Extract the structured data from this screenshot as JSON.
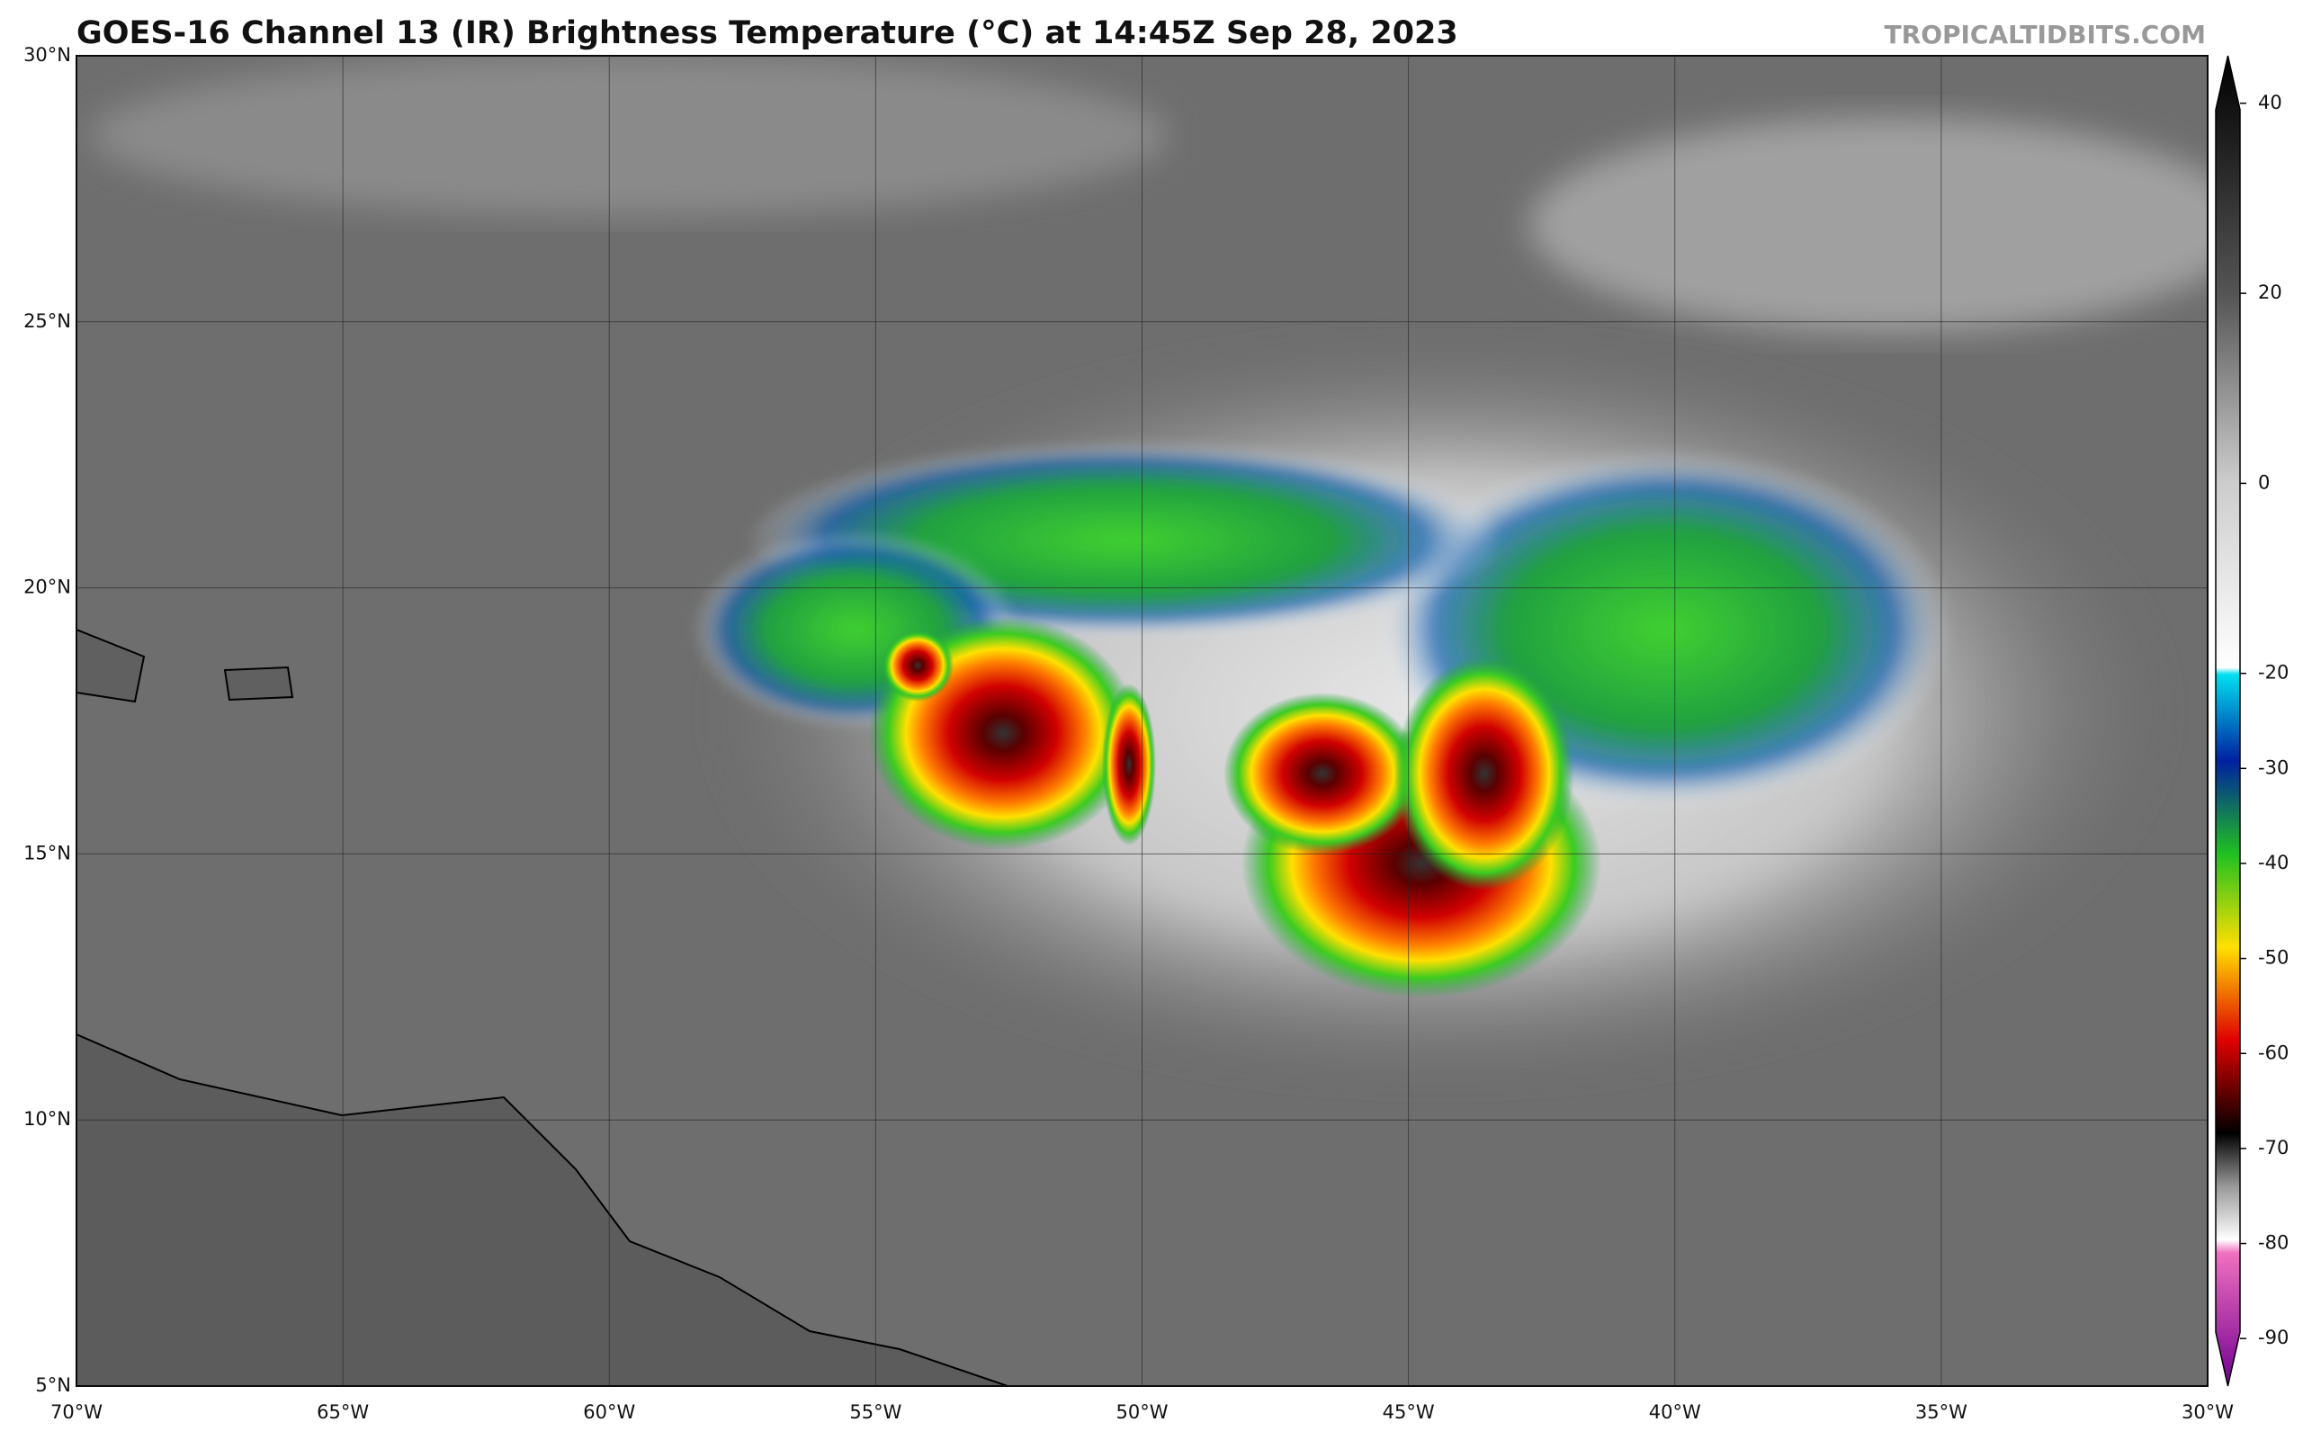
{
  "header": {
    "title": "GOES-16 Channel 13 (IR) Brightness Temperature (°C) at 14:45Z Sep 28, 2023",
    "watermark": "TROPICALTIDBITS.COM"
  },
  "map": {
    "xlim": [
      -70,
      -30
    ],
    "ylim": [
      5,
      30
    ],
    "xticks": [
      {
        "value": -70,
        "label": "70°W"
      },
      {
        "value": -65,
        "label": "65°W"
      },
      {
        "value": -60,
        "label": "60°W"
      },
      {
        "value": -55,
        "label": "55°W"
      },
      {
        "value": -50,
        "label": "50°W"
      },
      {
        "value": -45,
        "label": "45°W"
      },
      {
        "value": -40,
        "label": "40°W"
      },
      {
        "value": -35,
        "label": "35°W"
      },
      {
        "value": -30,
        "label": "30°W"
      }
    ],
    "yticks": [
      {
        "value": 5,
        "label": "5°N"
      },
      {
        "value": 10,
        "label": "10°N"
      },
      {
        "value": 15,
        "label": "15°N"
      },
      {
        "value": 20,
        "label": "20°N"
      },
      {
        "value": 25,
        "label": "25°N"
      },
      {
        "value": 30,
        "label": "30°N"
      }
    ]
  },
  "colorbar": {
    "lim": [
      -95,
      45
    ],
    "ticks": [
      40,
      20,
      0,
      -20,
      -30,
      -40,
      -50,
      -60,
      -70,
      -80,
      -90
    ]
  }
}
